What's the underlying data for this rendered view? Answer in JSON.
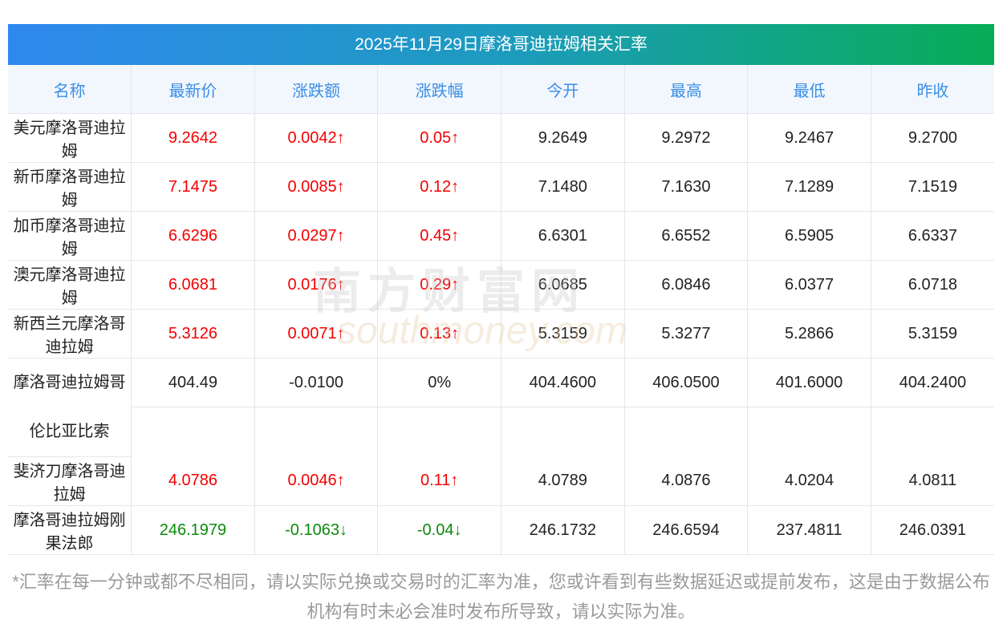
{
  "title": "2025年11月29日摩洛哥迪拉姆相关汇率",
  "headers": [
    "名称",
    "最新价",
    "涨跌额",
    "涨跌幅",
    "今开",
    "最高",
    "最低",
    "昨收"
  ],
  "rows": [
    {
      "name": "美元摩洛哥迪拉姆",
      "latest": "9.2642",
      "change": "0.0042↑",
      "pct": "0.05↑",
      "open": "9.2649",
      "high": "9.2972",
      "low": "9.2467",
      "prev": "9.2700",
      "trend": "up"
    },
    {
      "name": "新币摩洛哥迪拉姆",
      "latest": "7.1475",
      "change": "0.0085↑",
      "pct": "0.12↑",
      "open": "7.1480",
      "high": "7.1630",
      "low": "7.1289",
      "prev": "7.1519",
      "trend": "up"
    },
    {
      "name": "加币摩洛哥迪拉姆",
      "latest": "6.6296",
      "change": "0.0297↑",
      "pct": "0.45↑",
      "open": "6.6301",
      "high": "6.6552",
      "low": "6.5905",
      "prev": "6.6337",
      "trend": "up"
    },
    {
      "name": "澳元摩洛哥迪拉姆",
      "latest": "6.0681",
      "change": "0.0176↑",
      "pct": "0.29↑",
      "open": "6.0685",
      "high": "6.0846",
      "low": "6.0377",
      "prev": "6.0718",
      "trend": "up"
    },
    {
      "name": "新西兰元摩洛哥迪拉姆",
      "latest": "5.3126",
      "change": "0.0071↑",
      "pct": "0.13↑",
      "open": "5.3159",
      "high": "5.3277",
      "low": "5.2866",
      "prev": "5.3159",
      "trend": "up"
    },
    {
      "name": "摩洛哥迪拉姆哥伦比亚比索",
      "latest": "404.49",
      "change": "-0.0100",
      "pct": "0%",
      "open": "404.4600",
      "high": "406.0500",
      "low": "401.6000",
      "prev": "404.2400",
      "trend": "flat"
    },
    {
      "name": "斐济刀摩洛哥迪拉姆",
      "latest": "4.0786",
      "change": "0.0046↑",
      "pct": "0.11↑",
      "open": "4.0789",
      "high": "4.0876",
      "low": "4.0204",
      "prev": "4.0811",
      "trend": "up"
    },
    {
      "name": "摩洛哥迪拉姆刚果法郎",
      "latest": "246.1979",
      "change": "-0.1063↓",
      "pct": "-0.04↓",
      "open": "246.1732",
      "high": "246.6594",
      "low": "237.4811",
      "prev": "246.0391",
      "trend": "down"
    }
  ],
  "watermark": {
    "cn": "南方财富网",
    "en": "southmoney.com"
  },
  "note": "*汇率在每一分钟或都不尽相同，请以实际兑换或交易时的汇率为准，您或许看到有些数据延迟或提前发布，这是由于数据公布机构有时未必会准时发布所导致，请以实际为准。",
  "colors": {
    "up": "#f40000",
    "down": "#0a8a0a",
    "header_text": "#3a8ee6"
  }
}
